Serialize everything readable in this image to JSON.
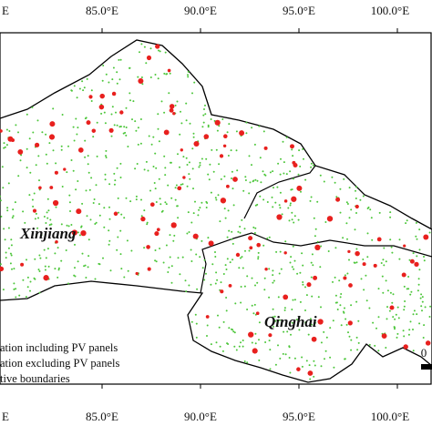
{
  "graticule": {
    "top": [
      "E",
      "85.0°E",
      "90.0°E",
      "95.0°E",
      "100.0°E"
    ],
    "bottom": [
      "E",
      "85.0°E",
      "90.0°E",
      "95.0°E",
      "100.0°E"
    ]
  },
  "regions": [
    "Xinjiang",
    "Qinghai"
  ],
  "legend": [
    "ation including PV panels",
    "ation excluding PV panels",
    "tive boundaries"
  ],
  "scale_bar": {
    "start": "0"
  }
}
